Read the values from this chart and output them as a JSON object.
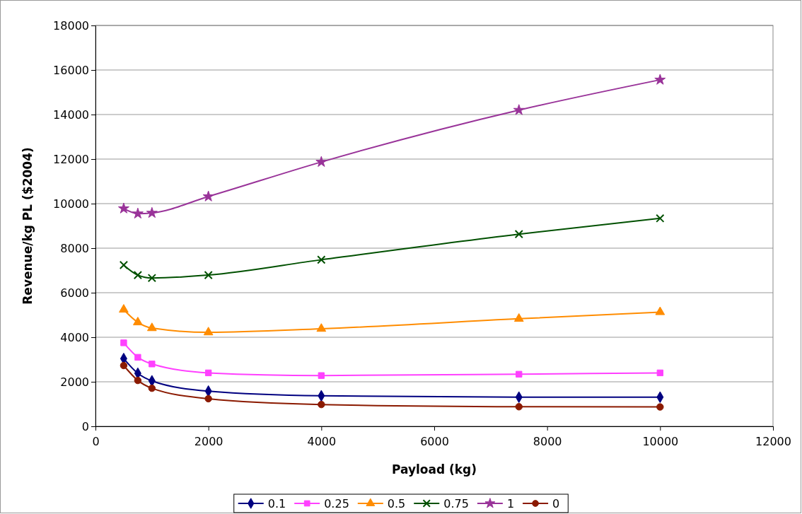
{
  "chart_data": {
    "type": "line",
    "xlabel": "Payload (kg)",
    "ylabel": "Revenue/kg PL ($2004)",
    "x": [
      500,
      750,
      1000,
      2000,
      4000,
      7500,
      10000
    ],
    "xlim": [
      0,
      12000
    ],
    "xticks": [
      0,
      2000,
      4000,
      6000,
      8000,
      10000,
      12000
    ],
    "ylim": [
      0,
      18000
    ],
    "yticks": [
      0,
      2000,
      4000,
      6000,
      8000,
      10000,
      12000,
      14000,
      16000,
      18000
    ],
    "grid": "y",
    "legend": "bottom",
    "series": [
      {
        "name": "0.1",
        "color": "#000080",
        "marker": "diamond",
        "values": [
          3040,
          2380,
          2040,
          1580,
          1370,
          1310,
          1310
        ]
      },
      {
        "name": "0.25",
        "color": "#ff40ff",
        "marker": "square",
        "values": [
          3750,
          3100,
          2800,
          2400,
          2280,
          2340,
          2400
        ]
      },
      {
        "name": "0.5",
        "color": "#ff8c00",
        "marker": "triangle",
        "values": [
          5240,
          4670,
          4410,
          4220,
          4380,
          4830,
          5130
        ]
      },
      {
        "name": "0.75",
        "color": "#005000",
        "marker": "cross",
        "values": [
          7240,
          6790,
          6660,
          6790,
          7480,
          8630,
          9340
        ]
      },
      {
        "name": "1",
        "color": "#993399",
        "marker": "star",
        "values": [
          9780,
          9550,
          9580,
          10320,
          11870,
          14200,
          15560
        ]
      },
      {
        "name": "0",
        "color": "#8b1a00",
        "marker": "circle",
        "values": [
          2730,
          2060,
          1710,
          1240,
          980,
          880,
          870
        ]
      }
    ]
  }
}
